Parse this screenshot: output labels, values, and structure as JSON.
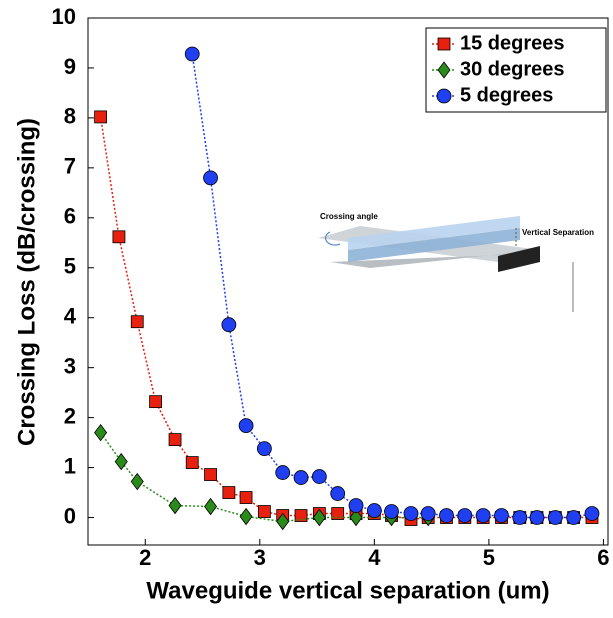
{
  "chart_data": {
    "type": "line",
    "xlabel": "Waveguide vertical separation (um)",
    "ylabel": "Crossing Loss (dB/crossing)",
    "xlim": [
      1.5,
      6.04
    ],
    "ylim": [
      -0.55,
      10
    ],
    "xticks": [
      2,
      3,
      4,
      5,
      6
    ],
    "yticks": [
      0,
      1,
      2,
      3,
      4,
      5,
      6,
      7,
      8,
      9,
      10
    ],
    "legend": "upper right",
    "annotations": [
      "Crossing angle",
      "Vertical Separation"
    ],
    "series": [
      {
        "name": "15 degrees",
        "color": "#e8200f",
        "marker": "square",
        "x": [
          1.61,
          1.77,
          1.93,
          2.09,
          2.26,
          2.41,
          2.57,
          2.73,
          2.88,
          3.04,
          3.2,
          3.36,
          3.52,
          3.68,
          3.84,
          4.0,
          4.15,
          4.32,
          4.47,
          4.63,
          4.79,
          4.95,
          5.11,
          5.27,
          5.42,
          5.58,
          5.74,
          5.9
        ],
        "values": [
          8.02,
          5.62,
          3.92,
          2.32,
          1.56,
          1.1,
          0.86,
          0.5,
          0.4,
          0.12,
          0.04,
          0.04,
          0.08,
          0.08,
          0.08,
          0.08,
          0.04,
          -0.04,
          0,
          0,
          0,
          0,
          0,
          0,
          0,
          0,
          0,
          0
        ]
      },
      {
        "name": "30 degrees",
        "color": "#2a8a1a",
        "marker": "diamond",
        "x": [
          1.61,
          1.79,
          1.93,
          2.26,
          2.57,
          2.88,
          3.2,
          3.52,
          3.84,
          4.15,
          4.47
        ],
        "values": [
          1.7,
          1.12,
          0.72,
          0.24,
          0.22,
          0.02,
          -0.08,
          0,
          0,
          0,
          0
        ]
      },
      {
        "name": "5 degrees",
        "color": "#1f3ff0",
        "marker": "circle",
        "x": [
          2.41,
          2.57,
          2.73,
          2.88,
          3.04,
          3.2,
          3.36,
          3.52,
          3.68,
          3.84,
          4.0,
          4.15,
          4.32,
          4.47,
          4.63,
          4.79,
          4.95,
          5.11,
          5.27,
          5.42,
          5.58,
          5.74,
          5.9
        ],
        "values": [
          9.28,
          6.8,
          3.86,
          1.84,
          1.38,
          0.9,
          0.8,
          0.82,
          0.48,
          0.24,
          0.14,
          0.12,
          0.08,
          0.08,
          0.04,
          0.04,
          0.04,
          0.04,
          0,
          0,
          0,
          0,
          0.08
        ]
      }
    ]
  }
}
